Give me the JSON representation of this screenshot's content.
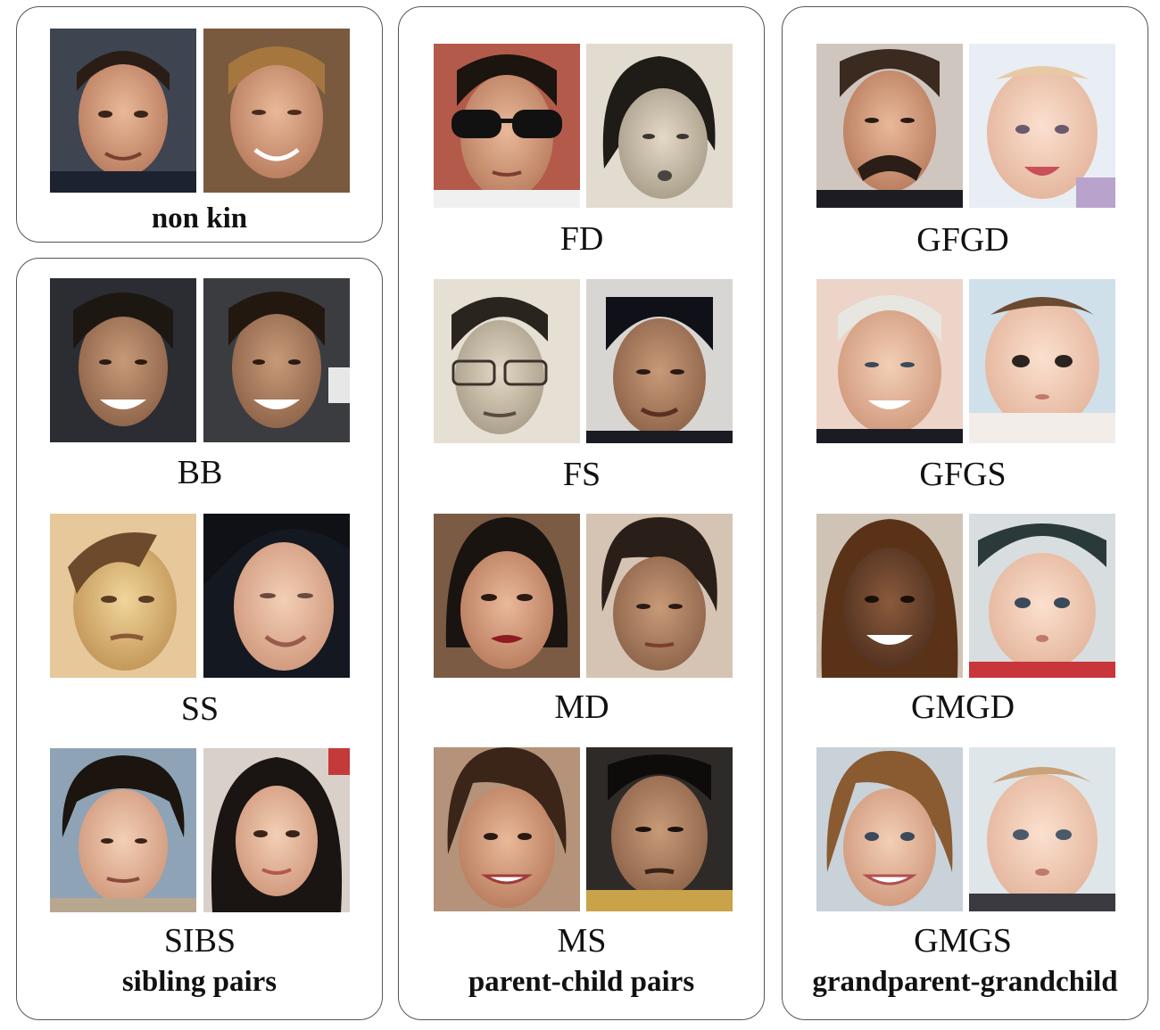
{
  "panels": {
    "non_kin": {
      "title": "non kin"
    },
    "siblings": {
      "title": "sibling pairs",
      "labels": [
        "BB",
        "SS",
        "SIBS"
      ]
    },
    "parent_child": {
      "title": "parent-child pairs",
      "labels": [
        "FD",
        "FS",
        "MD",
        "MS"
      ]
    },
    "grandparent": {
      "title": "grandparent-grandchild",
      "labels": [
        "GFGD",
        "GFGS",
        "GMGD",
        "GMGS"
      ]
    }
  }
}
